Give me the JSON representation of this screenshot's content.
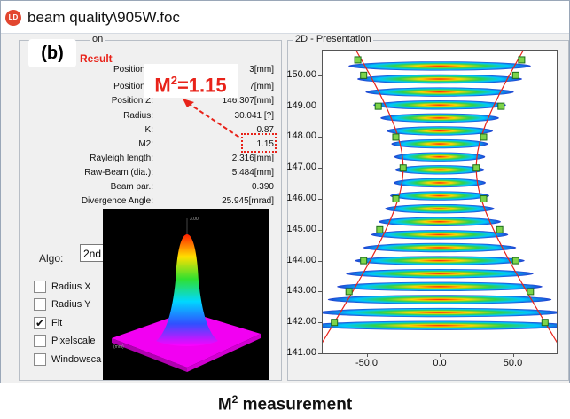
{
  "window": {
    "title": "beam quality\\905W.foc",
    "icon_text": "LD"
  },
  "panel_label": "(b)",
  "left_group_legend": "on",
  "right_group_legend": "2D - Presentation",
  "result": {
    "label": "Result",
    "rows": [
      {
        "name": "Position X",
        "value": "3[mm]"
      },
      {
        "name": "Position Y",
        "value": "7[mm]"
      },
      {
        "name": "Position Z:",
        "value": "146.307[mm]"
      },
      {
        "name": "Radius:",
        "value": "30.041 [?]"
      },
      {
        "name": "K:",
        "value": "0.87"
      },
      {
        "name": "M2:",
        "value": "1.15"
      },
      {
        "name": "Rayleigh length:",
        "value": "2.316[mm]"
      },
      {
        "name": "Raw-Beam (dia.):",
        "value": "5.484[mm]"
      },
      {
        "name": "Beam par.:",
        "value": "0.390"
      },
      {
        "name": "Divergence Angle:",
        "value": "25.945[mrad]"
      }
    ]
  },
  "callout": {
    "prefix": "M",
    "sup": "2",
    "suffix": "=1.15"
  },
  "algo": {
    "label": "Algo:",
    "value": "2nd"
  },
  "checkboxes": [
    {
      "label": "Radius X",
      "checked": false,
      "mark": ""
    },
    {
      "label": "Radius Y",
      "checked": false,
      "mark": ""
    },
    {
      "label": "Fit",
      "checked": true,
      "mark": "✔"
    },
    {
      "label": "Pixelscale",
      "checked": false,
      "mark": ""
    },
    {
      "label": "Windowsca",
      "checked": false,
      "mark": ""
    }
  ],
  "plot": {
    "y_ticks": [
      "150.00",
      "149.00",
      "148.00",
      "147.00",
      "146.00",
      "145.00",
      "144.00",
      "143.00",
      "142.00",
      "141.00"
    ],
    "x_ticks": [
      "-50.0",
      "0.0",
      "50.0"
    ]
  },
  "chart_data": {
    "type": "scatter",
    "title": "",
    "xlabel": "",
    "ylabel": "",
    "xlim": [
      -80,
      80
    ],
    "ylim": [
      141,
      150.8
    ],
    "series": [
      {
        "x": [
          -56,
          -52,
          -42,
          -30,
          -25,
          -30,
          -41,
          -52,
          -62,
          -72
        ],
        "y": [
          150.5,
          150.0,
          149.0,
          148.0,
          147.0,
          146.0,
          145.0,
          144.0,
          143.0,
          142.0
        ]
      }
    ],
    "colors": {
      "fit_curve": "#e8231a",
      "marker_fill": "#7dd44a",
      "marker_edge": "#1a6b1a"
    }
  },
  "caption": {
    "prefix": "M",
    "sup": "2",
    "suffix": "  measurement"
  }
}
